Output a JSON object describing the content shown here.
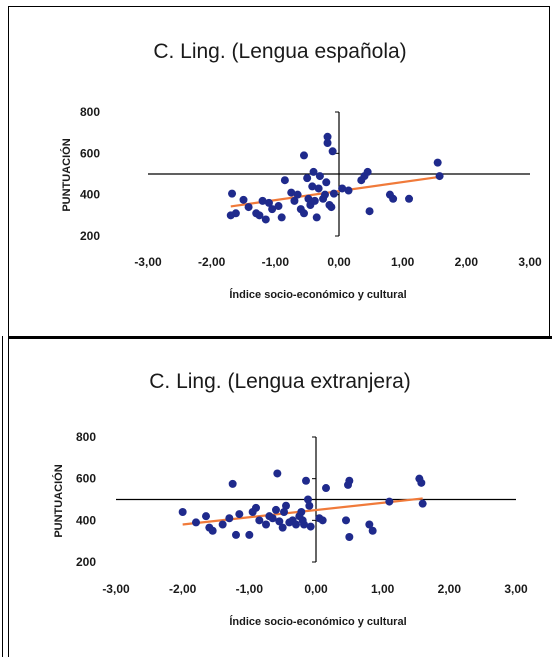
{
  "chart_data": [
    {
      "type": "scatter",
      "title": "C. Ling. (Lengua española)",
      "xlabel": "Índice socio-económico y cultural",
      "ylabel": "PUNTUACIÓN",
      "xlim": [
        -3,
        3
      ],
      "ylim": [
        200,
        800
      ],
      "x_ticks": [
        "-3,00",
        "-2,00",
        "-1,00",
        "0,00",
        "1,00",
        "2,00",
        "3,00"
      ],
      "y_ticks": [
        "200",
        "400",
        "600",
        "800"
      ],
      "grid": false,
      "legend": "none",
      "colors": {
        "points": "#1f2a8c",
        "trendline": "#f07a3a"
      },
      "points": [
        [
          -1.68,
          405
        ],
        [
          -1.7,
          300
        ],
        [
          -1.62,
          310
        ],
        [
          -1.5,
          375
        ],
        [
          -1.42,
          340
        ],
        [
          -1.3,
          310
        ],
        [
          -1.25,
          300
        ],
        [
          -1.2,
          370
        ],
        [
          -1.15,
          280
        ],
        [
          -1.1,
          360
        ],
        [
          -1.05,
          330
        ],
        [
          -0.95,
          345
        ],
        [
          -0.9,
          290
        ],
        [
          -0.85,
          470
        ],
        [
          -0.75,
          410
        ],
        [
          -0.7,
          370
        ],
        [
          -0.65,
          400
        ],
        [
          -0.6,
          330
        ],
        [
          -0.55,
          310
        ],
        [
          -0.55,
          590
        ],
        [
          -0.5,
          480
        ],
        [
          -0.48,
          380
        ],
        [
          -0.45,
          350
        ],
        [
          -0.42,
          440
        ],
        [
          -0.4,
          510
        ],
        [
          -0.38,
          370
        ],
        [
          -0.35,
          290
        ],
        [
          -0.32,
          430
        ],
        [
          -0.3,
          490
        ],
        [
          -0.25,
          380
        ],
        [
          -0.22,
          400
        ],
        [
          -0.2,
          460
        ],
        [
          -0.18,
          680
        ],
        [
          -0.18,
          650
        ],
        [
          -0.15,
          350
        ],
        [
          -0.12,
          340
        ],
        [
          -0.1,
          610
        ],
        [
          -0.08,
          405
        ],
        [
          0.05,
          430
        ],
        [
          0.15,
          420
        ],
        [
          0.35,
          470
        ],
        [
          0.4,
          490
        ],
        [
          0.45,
          510
        ],
        [
          0.48,
          320
        ],
        [
          0.8,
          400
        ],
        [
          0.85,
          380
        ],
        [
          1.1,
          380
        ],
        [
          1.55,
          555
        ],
        [
          1.58,
          490
        ]
      ],
      "trendline": {
        "x": [
          -1.7,
          1.6
        ],
        "y": [
          343,
          487
        ]
      }
    },
    {
      "type": "scatter",
      "title": "C. Ling. (Lengua extranjera)",
      "xlabel": "Índice socio-económico y cultural",
      "ylabel": "PUNTUACIÓN",
      "xlim": [
        -3,
        3
      ],
      "ylim": [
        200,
        800
      ],
      "x_ticks": [
        "-3,00",
        "-2,00",
        "-1,00",
        "0,00",
        "1,00",
        "2,00",
        "3,00"
      ],
      "y_ticks": [
        "200",
        "400",
        "600",
        "800"
      ],
      "grid": false,
      "legend": "none",
      "colors": {
        "points": "#1f2a8c",
        "trendline": "#f07a3a"
      },
      "points": [
        [
          -2.0,
          440
        ],
        [
          -1.8,
          390
        ],
        [
          -1.65,
          420
        ],
        [
          -1.6,
          365
        ],
        [
          -1.55,
          350
        ],
        [
          -1.4,
          380
        ],
        [
          -1.3,
          410
        ],
        [
          -1.25,
          575
        ],
        [
          -1.2,
          330
        ],
        [
          -1.15,
          430
        ],
        [
          -1.0,
          330
        ],
        [
          -0.95,
          440
        ],
        [
          -0.9,
          460
        ],
        [
          -0.85,
          400
        ],
        [
          -0.75,
          380
        ],
        [
          -0.7,
          420
        ],
        [
          -0.65,
          410
        ],
        [
          -0.6,
          450
        ],
        [
          -0.58,
          625
        ],
        [
          -0.55,
          395
        ],
        [
          -0.5,
          365
        ],
        [
          -0.48,
          440
        ],
        [
          -0.45,
          470
        ],
        [
          -0.4,
          390
        ],
        [
          -0.35,
          400
        ],
        [
          -0.3,
          380
        ],
        [
          -0.25,
          420
        ],
        [
          -0.22,
          440
        ],
        [
          -0.2,
          400
        ],
        [
          -0.18,
          380
        ],
        [
          -0.15,
          590
        ],
        [
          -0.12,
          500
        ],
        [
          -0.1,
          470
        ],
        [
          -0.08,
          370
        ],
        [
          0.05,
          410
        ],
        [
          0.1,
          400
        ],
        [
          0.15,
          555
        ],
        [
          0.45,
          400
        ],
        [
          0.48,
          570
        ],
        [
          0.5,
          590
        ],
        [
          0.5,
          320
        ],
        [
          0.8,
          380
        ],
        [
          0.85,
          350
        ],
        [
          1.1,
          490
        ],
        [
          1.55,
          600
        ],
        [
          1.58,
          580
        ],
        [
          1.6,
          480
        ]
      ],
      "trendline": {
        "x": [
          -2.0,
          1.6
        ],
        "y": [
          380,
          505
        ]
      }
    }
  ]
}
